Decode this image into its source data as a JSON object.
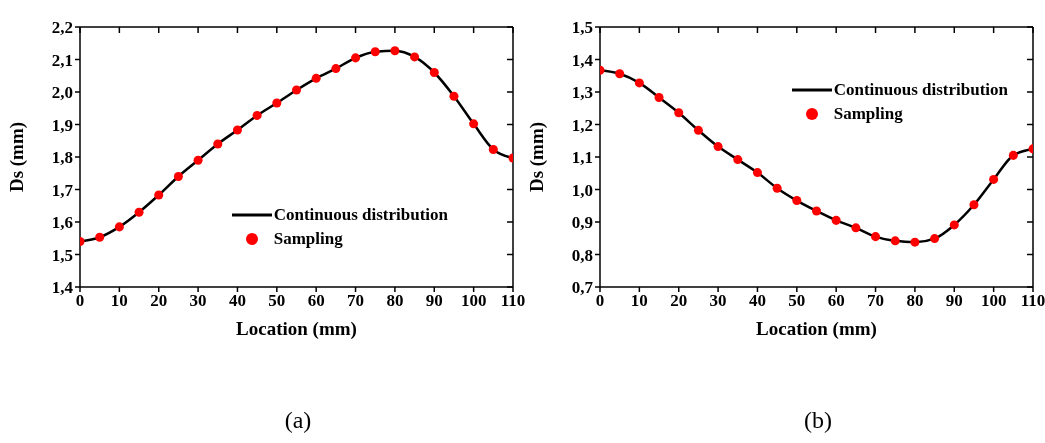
{
  "chart_data": [
    {
      "type": "line",
      "xlabel": "Location (mm)",
      "ylabel": "Ds (mm)",
      "annotations": [
        "(a)"
      ],
      "legend": "right",
      "x": [
        0,
        5,
        10,
        15,
        20,
        25,
        30,
        35,
        40,
        45,
        50,
        55,
        60,
        65,
        70,
        75,
        80,
        85,
        90,
        95,
        100,
        105,
        110
      ],
      "xlim": [
        0,
        110
      ],
      "xticks": [
        0,
        10,
        20,
        30,
        40,
        50,
        60,
        70,
        80,
        90,
        100,
        110
      ],
      "ylim": [
        1.4,
        2.2
      ],
      "yticks": [
        {
          "value": 1.4,
          "label": "1,4"
        },
        {
          "value": 1.5,
          "label": "1,5"
        },
        {
          "value": 1.6,
          "label": "1,6"
        },
        {
          "value": 1.7,
          "label": "1,7"
        },
        {
          "value": 1.8,
          "label": "1,8"
        },
        {
          "value": 1.9,
          "label": "1,9"
        },
        {
          "value": 2.0,
          "label": "2,0"
        },
        {
          "value": 2.1,
          "label": "2,1"
        },
        {
          "value": 2.2,
          "label": "2,2"
        }
      ],
      "series": [
        {
          "name": "Continuous distribution",
          "marker": "none",
          "line_style": "solid",
          "color": "#000000",
          "values": [
            1.54,
            1.553,
            1.585,
            1.63,
            1.683,
            1.74,
            1.79,
            1.84,
            1.883,
            1.928,
            1.966,
            2.006,
            2.042,
            2.072,
            2.105,
            2.124,
            2.127,
            2.108,
            2.06,
            1.987,
            1.902,
            1.823,
            1.797
          ]
        },
        {
          "name": "Sampling",
          "type": "scatter",
          "marker": "circle",
          "color": "#ff0000",
          "values": [
            1.54,
            1.553,
            1.585,
            1.63,
            1.683,
            1.74,
            1.79,
            1.84,
            1.883,
            1.928,
            1.966,
            2.006,
            2.042,
            2.072,
            2.105,
            2.124,
            2.127,
            2.108,
            2.06,
            1.987,
            1.902,
            1.823,
            1.797
          ]
        }
      ]
    },
    {
      "type": "line",
      "xlabel": "Location (mm)",
      "ylabel": "Ds (mm)",
      "annotations": [
        "(b)"
      ],
      "legend": "top right",
      "x": [
        0,
        5,
        10,
        15,
        20,
        25,
        30,
        35,
        40,
        45,
        50,
        55,
        60,
        65,
        70,
        75,
        80,
        85,
        90,
        95,
        100,
        105,
        110
      ],
      "xlim": [
        0,
        110
      ],
      "xticks": [
        0,
        10,
        20,
        30,
        40,
        50,
        60,
        70,
        80,
        90,
        100,
        110
      ],
      "ylim": [
        0.7,
        1.5
      ],
      "yticks": [
        {
          "value": 0.7,
          "label": "0,7"
        },
        {
          "value": 0.8,
          "label": "0,8"
        },
        {
          "value": 0.9,
          "label": "0,9"
        },
        {
          "value": 1.0,
          "label": "1,0"
        },
        {
          "value": 1.1,
          "label": "1,1"
        },
        {
          "value": 1.2,
          "label": "1,2"
        },
        {
          "value": 1.3,
          "label": "1,3"
        },
        {
          "value": 1.4,
          "label": "1,4"
        },
        {
          "value": 1.5,
          "label": "1,5"
        }
      ],
      "series": [
        {
          "name": "Continuous distribution",
          "marker": "none",
          "line_style": "solid",
          "color": "#000000",
          "values": [
            1.367,
            1.356,
            1.328,
            1.283,
            1.236,
            1.182,
            1.132,
            1.092,
            1.052,
            1.004,
            0.966,
            0.934,
            0.905,
            0.882,
            0.855,
            0.842,
            0.838,
            0.849,
            0.891,
            0.953,
            1.031,
            1.105,
            1.125
          ]
        },
        {
          "name": "Sampling",
          "type": "scatter",
          "marker": "circle",
          "color": "#ff0000",
          "values": [
            1.367,
            1.356,
            1.328,
            1.283,
            1.236,
            1.182,
            1.132,
            1.092,
            1.052,
            1.004,
            0.966,
            0.934,
            0.905,
            0.882,
            0.855,
            0.842,
            0.838,
            0.849,
            0.891,
            0.953,
            1.031,
            1.105,
            1.125
          ]
        }
      ]
    }
  ]
}
